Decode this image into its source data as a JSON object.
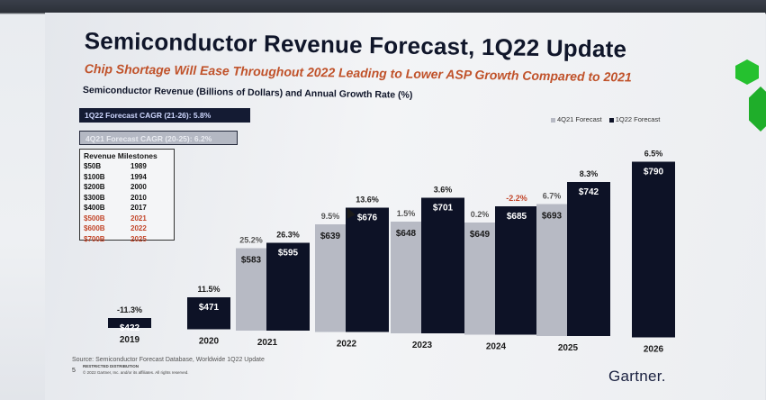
{
  "header": {
    "title": "Semiconductor Revenue Forecast, 1Q22 Update",
    "subtitle": "Chip Shortage Will Ease Throughout 2022 Leading to Lower ASP Growth Compared to 2021",
    "chart_label": "Semiconductor Revenue (Billions of Dollars) and Annual Growth Rate (%)"
  },
  "cagr": {
    "forecast_1q22": "1Q22 Forecast CAGR (21-26): 5.8%",
    "forecast_4q21": "4Q21 Forecast CAGR (20-25): 6.2%"
  },
  "milestones": {
    "heading": "Revenue Milestones",
    "rows": [
      {
        "amount": "$50B",
        "year": "1989"
      },
      {
        "amount": "$100B",
        "year": "1994"
      },
      {
        "amount": "$200B",
        "year": "2000"
      },
      {
        "amount": "$300B",
        "year": "2010"
      },
      {
        "amount": "$400B",
        "year": "2017"
      },
      {
        "amount": "$500B",
        "year": "2021"
      },
      {
        "amount": "$600B",
        "year": "2022"
      },
      {
        "amount": "$700B",
        "year": "2025"
      }
    ]
  },
  "colors": {
    "forecast_4q21": "#b7bac4",
    "forecast_1q22": "#0d1226",
    "negative_growth": "#c2462a",
    "milestone_highlight": "#c2462a"
  },
  "chart_data": {
    "type": "bar",
    "title": "Semiconductor Revenue (Billions of Dollars) and Annual Growth Rate (%)",
    "categories": [
      "2019",
      "2020",
      "2021",
      "2022",
      "2023",
      "2024",
      "2025",
      "2026"
    ],
    "legend": [
      "4Q21 Forecast",
      "1Q22 Forecast"
    ],
    "legend_position": "top-right",
    "series": [
      {
        "name": "4Q21 Forecast",
        "values": [
          null,
          null,
          583,
          639,
          648,
          649,
          693,
          null
        ],
        "labels": [
          null,
          null,
          "$583",
          "$639",
          "$648",
          "$649",
          "$693",
          null
        ],
        "growth": [
          null,
          null,
          "25.2%",
          "9.5%",
          "1.5%",
          "0.2%",
          "6.7%",
          null
        ]
      },
      {
        "name": "1Q22 Forecast",
        "values": [
          422,
          471,
          595,
          676,
          701,
          685,
          742,
          790
        ],
        "labels": [
          "$422",
          "$471",
          "$595",
          "$676",
          "$701",
          "$685",
          "$742",
          "$790"
        ],
        "growth": [
          "-11.3%",
          "11.5%",
          "26.3%",
          "13.6%",
          "3.6%",
          "-2.2%",
          "8.3%",
          "6.5%"
        ]
      }
    ],
    "ylim": [
      400,
      800
    ],
    "grid": false
  },
  "footer": {
    "source": "Source: Semiconductor Forecast Database, Worldwide 1Q22 Update",
    "restricted": "RESTRICTED DISTRIBUTION",
    "copyright": "© 2022 Gartner, Inc. and/or its affiliates. All rights reserved.",
    "page_number": "5",
    "brand": "Gartner."
  }
}
